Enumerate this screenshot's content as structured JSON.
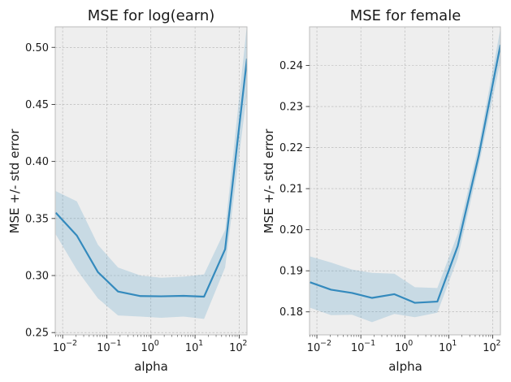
{
  "chart_data": [
    {
      "type": "line",
      "title": "MSE for log(earn)",
      "xlabel": "alpha",
      "ylabel": "MSE +/- std error",
      "xscale": "log",
      "xlim": [
        0.0068,
        150
      ],
      "ylim": [
        0.248,
        0.518
      ],
      "grid": true,
      "x": [
        0.007,
        0.021,
        0.063,
        0.18,
        0.58,
        1.7,
        5.5,
        16,
        48,
        150
      ],
      "series": [
        {
          "values": [
            0.355,
            0.335,
            0.303,
            0.286,
            0.282,
            0.2818,
            0.2822,
            0.2815,
            0.323,
            0.49
          ],
          "lower": [
            0.336,
            0.305,
            0.28,
            0.265,
            0.264,
            0.263,
            0.264,
            0.262,
            0.307,
            0.46
          ],
          "upper": [
            0.374,
            0.365,
            0.327,
            0.307,
            0.3,
            0.298,
            0.299,
            0.301,
            0.34,
            0.52
          ]
        }
      ],
      "xticks": [
        {
          "value": 0.01,
          "base": "10",
          "exp": "−2"
        },
        {
          "value": 0.1,
          "base": "10",
          "exp": "−1"
        },
        {
          "value": 1,
          "base": "10",
          "exp": "0"
        },
        {
          "value": 10,
          "base": "10",
          "exp": "1"
        },
        {
          "value": 100,
          "base": "10",
          "exp": "2"
        }
      ],
      "yticks": [
        {
          "value": 0.25,
          "label": "0.25"
        },
        {
          "value": 0.3,
          "label": "0.30"
        },
        {
          "value": 0.35,
          "label": "0.35"
        },
        {
          "value": 0.4,
          "label": "0.40"
        },
        {
          "value": 0.45,
          "label": "0.45"
        },
        {
          "value": 0.5,
          "label": "0.50"
        }
      ]
    },
    {
      "type": "line",
      "title": "MSE for female",
      "xlabel": "alpha",
      "ylabel": "MSE +/- std error",
      "xscale": "log",
      "xlim": [
        0.0068,
        150
      ],
      "ylim": [
        0.1744,
        0.2494
      ],
      "grid": true,
      "x": [
        0.007,
        0.021,
        0.063,
        0.18,
        0.58,
        1.7,
        5.5,
        16,
        48,
        150
      ],
      "series": [
        {
          "values": [
            0.1872,
            0.1854,
            0.1846,
            0.1834,
            0.1843,
            0.1822,
            0.1825,
            0.196,
            0.218,
            0.245
          ],
          "lower": [
            0.181,
            0.1792,
            0.1793,
            0.1775,
            0.1795,
            0.1787,
            0.1798,
            0.193,
            0.2155,
            0.241
          ],
          "upper": [
            0.1935,
            0.192,
            0.1903,
            0.1895,
            0.1893,
            0.186,
            0.1858,
            0.199,
            0.2205,
            0.249
          ]
        }
      ],
      "xticks": [
        {
          "value": 0.01,
          "base": "10",
          "exp": "−2"
        },
        {
          "value": 0.1,
          "base": "10",
          "exp": "−1"
        },
        {
          "value": 1,
          "base": "10",
          "exp": "0"
        },
        {
          "value": 10,
          "base": "10",
          "exp": "1"
        },
        {
          "value": 100,
          "base": "10",
          "exp": "2"
        }
      ],
      "yticks": [
        {
          "value": 0.18,
          "label": "0.18"
        },
        {
          "value": 0.19,
          "label": "0.19"
        },
        {
          "value": 0.2,
          "label": "0.20"
        },
        {
          "value": 0.21,
          "label": "0.21"
        },
        {
          "value": 0.22,
          "label": "0.22"
        },
        {
          "value": 0.23,
          "label": "0.23"
        },
        {
          "value": 0.24,
          "label": "0.24"
        }
      ]
    }
  ],
  "colors": {
    "line": "#348abd",
    "band": "#348abd",
    "plot_background": "#eeeeee",
    "grid": "#b2b2b2",
    "frame": "#bcbcbc"
  }
}
